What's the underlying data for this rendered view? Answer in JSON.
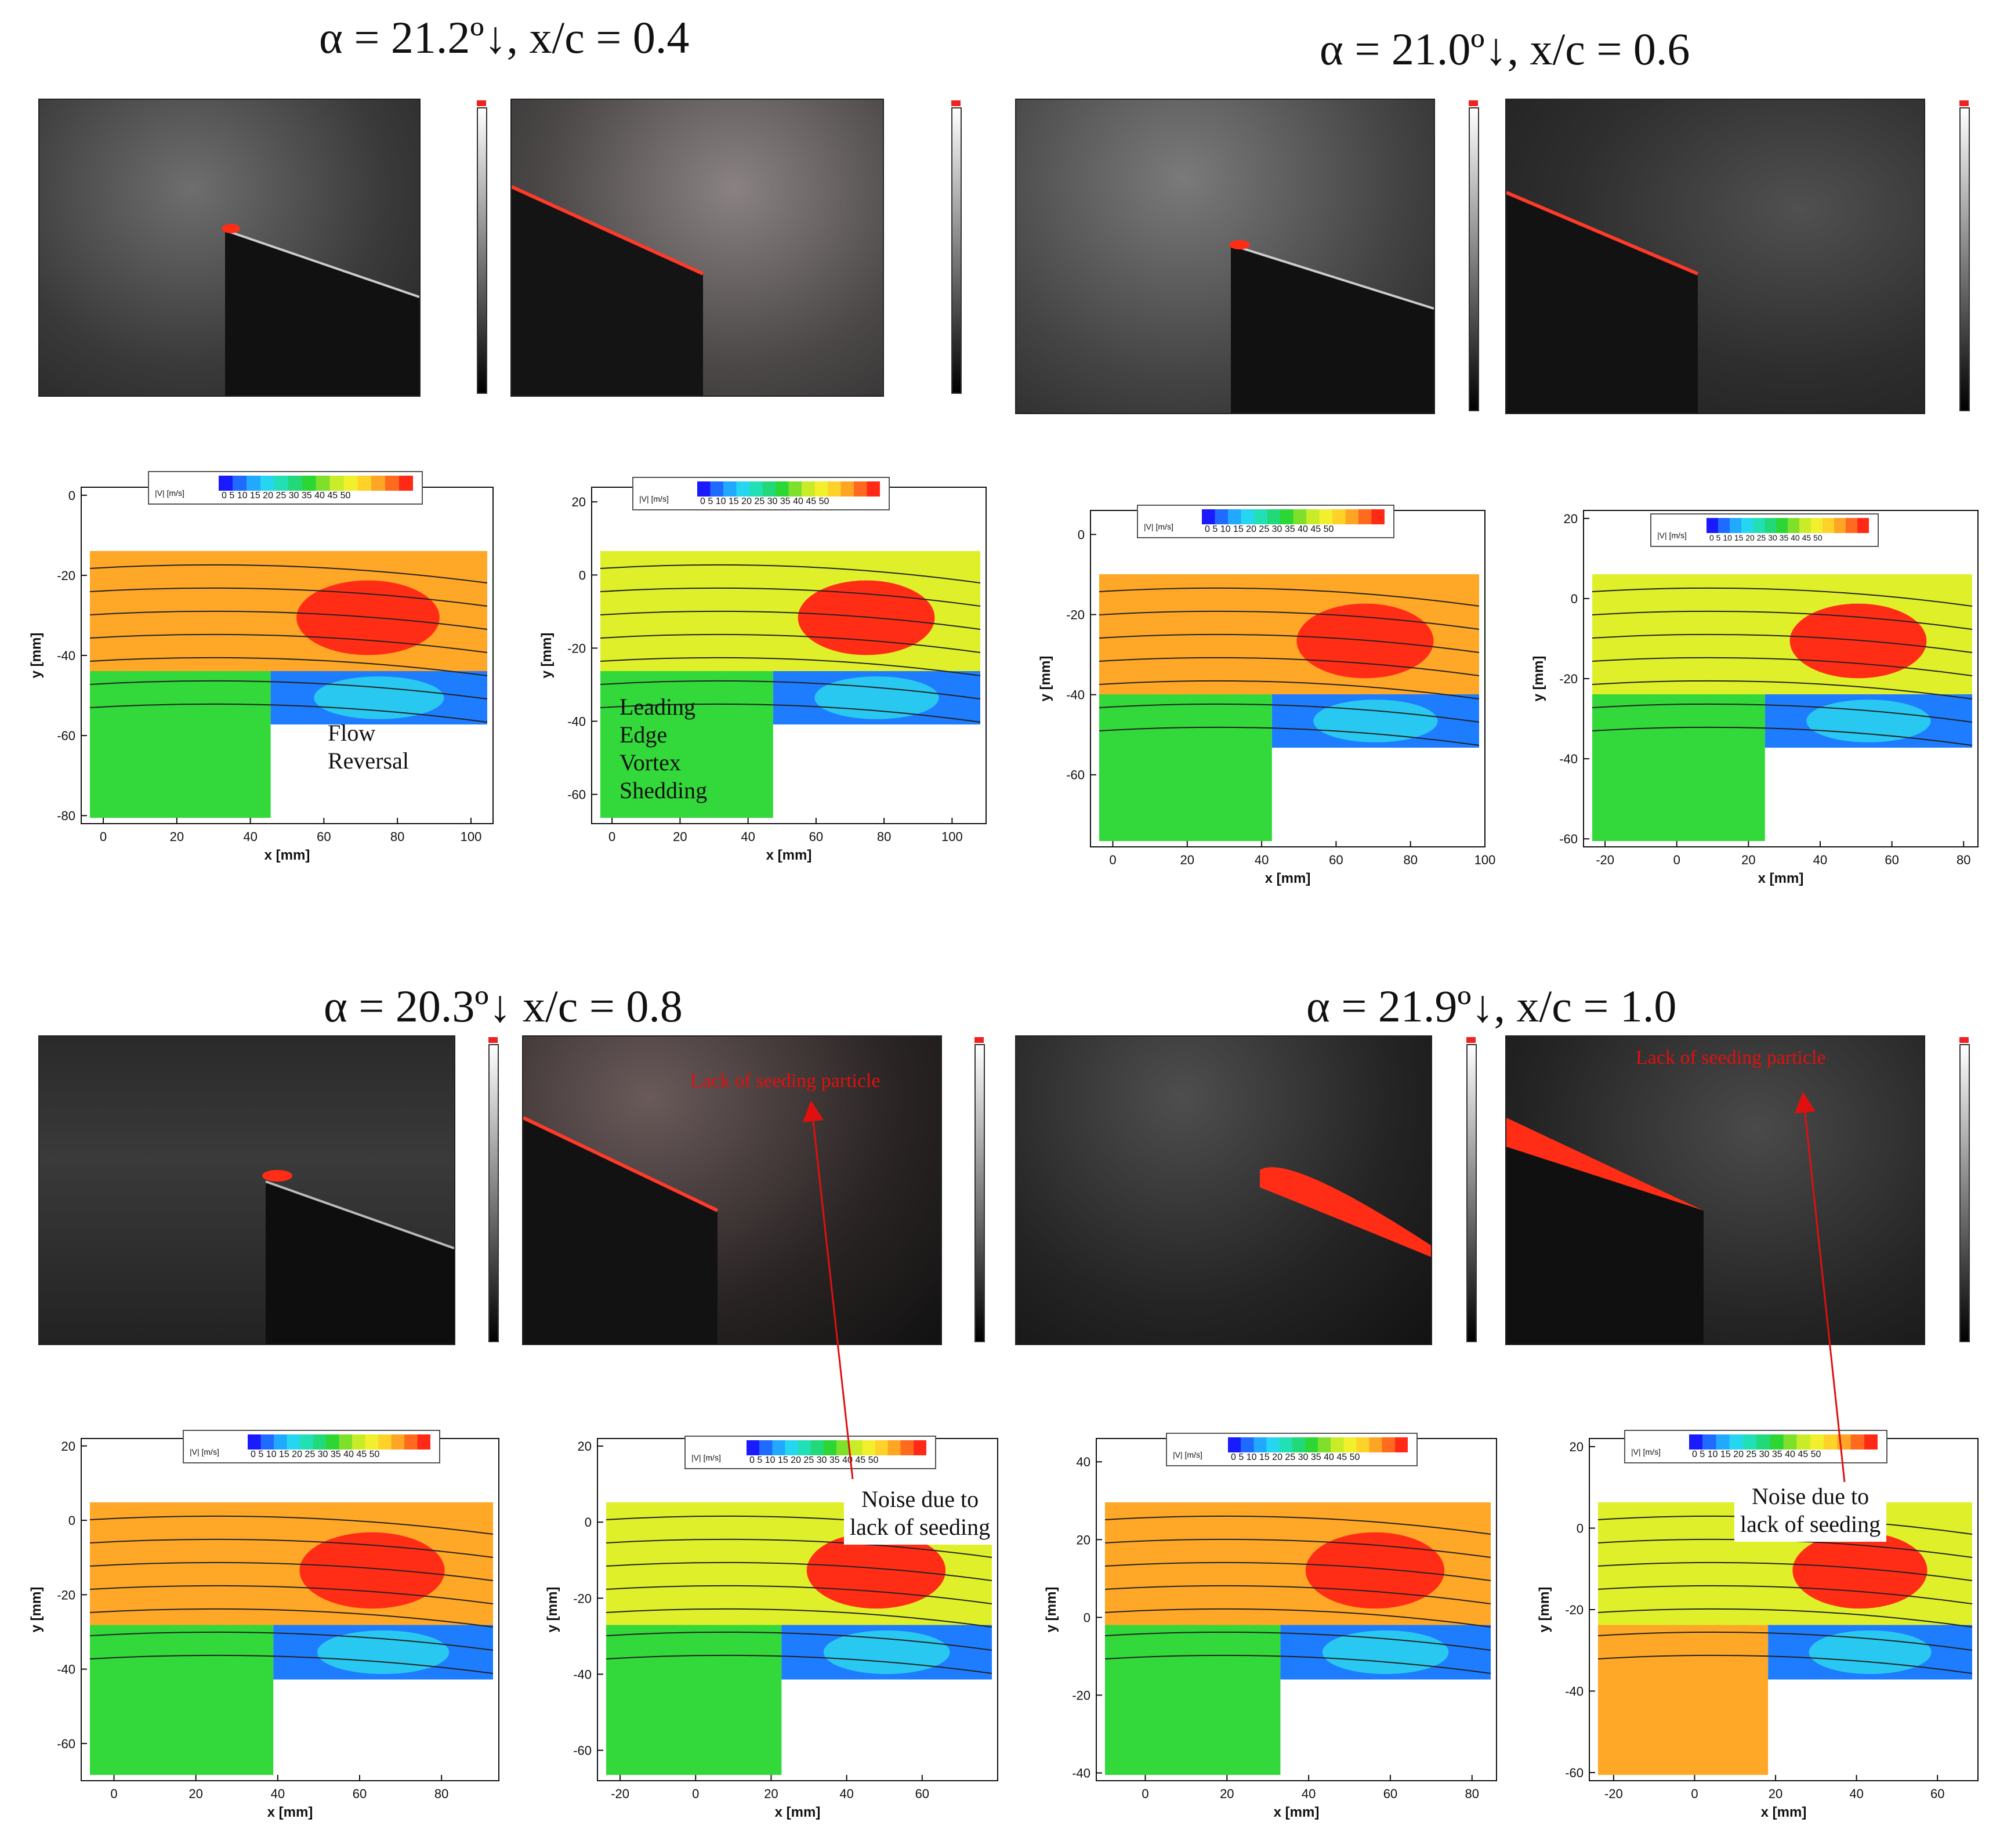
{
  "panels": [
    {
      "title": "α = 21.2º↓, x/c = 0.4",
      "plots": [
        {
          "xlim": [
            -6,
            106
          ],
          "ylim": [
            -82,
            2
          ],
          "xticks": [
            "0",
            "20",
            "40",
            "60",
            "80",
            "100"
          ],
          "xtick_vals": [
            0,
            20,
            40,
            60,
            80,
            100
          ],
          "yticks": [
            "0",
            "-20",
            "-40",
            "-60",
            "-80"
          ],
          "ytick_vals": [
            0,
            -20,
            -40,
            -60,
            -80
          ],
          "xlabel": "x [mm]",
          "ylabel": "y [mm]"
        },
        {
          "xlim": [
            -6,
            110
          ],
          "ylim": [
            -68,
            24
          ],
          "xticks": [
            "0",
            "20",
            "40",
            "60",
            "80",
            "100"
          ],
          "xtick_vals": [
            0,
            20,
            40,
            60,
            80,
            100
          ],
          "yticks": [
            "20",
            "0",
            "-20",
            "-40",
            "-60"
          ],
          "ytick_vals": [
            20,
            0,
            -20,
            -40,
            -60
          ],
          "xlabel": "x [mm]",
          "ylabel": "y [mm]"
        }
      ]
    },
    {
      "title": "α = 21.0º↓, x/c = 0.6",
      "plots": [
        {
          "xlim": [
            -6,
            100
          ],
          "ylim": [
            -78,
            6
          ],
          "xticks": [
            "0",
            "20",
            "40",
            "60",
            "80",
            "100"
          ],
          "xtick_vals": [
            0,
            20,
            40,
            60,
            80,
            100
          ],
          "yticks": [
            "0",
            "-20",
            "-40",
            "-60"
          ],
          "ytick_vals": [
            0,
            -20,
            -40,
            -60
          ],
          "xlabel": "x [mm]",
          "ylabel": "y [mm]"
        },
        {
          "xlim": [
            -26,
            84
          ],
          "ylim": [
            -62,
            22
          ],
          "xticks": [
            "-20",
            "0",
            "20",
            "40",
            "60",
            "80"
          ],
          "xtick_vals": [
            -20,
            0,
            20,
            40,
            60,
            80
          ],
          "yticks": [
            "20",
            "0",
            "-20",
            "-40",
            "-60"
          ],
          "ytick_vals": [
            20,
            0,
            -20,
            -40,
            -60
          ],
          "xlabel": "x [mm]",
          "ylabel": "y [mm]"
        }
      ]
    },
    {
      "title": "α = 20.3º↓  x/c = 0.8",
      "plots": [
        {
          "xlim": [
            -8,
            94
          ],
          "ylim": [
            -70,
            22
          ],
          "xticks": [
            "0",
            "20",
            "40",
            "60",
            "80"
          ],
          "xtick_vals": [
            0,
            20,
            40,
            60,
            80
          ],
          "yticks": [
            "20",
            "0",
            "-20",
            "-40",
            "-60"
          ],
          "ytick_vals": [
            20,
            0,
            -20,
            -40,
            -60
          ],
          "xlabel": "x [mm]",
          "ylabel": "y [mm]"
        },
        {
          "xlim": [
            -26,
            80
          ],
          "ylim": [
            -68,
            22
          ],
          "xticks": [
            "-20",
            "0",
            "20",
            "40",
            "60"
          ],
          "xtick_vals": [
            -20,
            0,
            20,
            40,
            60
          ],
          "yticks": [
            "20",
            "0",
            "-20",
            "-40",
            "-60"
          ],
          "ytick_vals": [
            20,
            0,
            -20,
            -40,
            -60
          ],
          "xlabel": "x [mm]",
          "ylabel": "y [mm]"
        }
      ]
    },
    {
      "title": "α = 21.9º↓, x/c = 1.0",
      "plots": [
        {
          "xlim": [
            -12,
            86
          ],
          "ylim": [
            -42,
            46
          ],
          "xticks": [
            "0",
            "20",
            "40",
            "60",
            "80"
          ],
          "xtick_vals": [
            0,
            20,
            40,
            60,
            80
          ],
          "yticks": [
            "40",
            "20",
            "0",
            "-20",
            "-40"
          ],
          "ytick_vals": [
            40,
            20,
            0,
            -20,
            -40
          ],
          "xlabel": "x [mm]",
          "ylabel": "y [mm]"
        },
        {
          "xlim": [
            -26,
            70
          ],
          "ylim": [
            -62,
            22
          ],
          "xticks": [
            "-20",
            "0",
            "20",
            "40",
            "60"
          ],
          "xtick_vals": [
            -20,
            0,
            20,
            40,
            60
          ],
          "yticks": [
            "20",
            "0",
            "-20",
            "-40",
            "-60"
          ],
          "ytick_vals": [
            20,
            0,
            -20,
            -40,
            -60
          ],
          "xlabel": "x [mm]",
          "ylabel": "y [mm]"
        }
      ]
    }
  ],
  "legend": {
    "label": "|V| [m/s]",
    "ticks": "0  5 10 15 20 25 30 35 40 45 50",
    "colors": [
      "#1a1aff",
      "#1f6bff",
      "#21a9ff",
      "#26d6f0",
      "#22e0b5",
      "#22d97a",
      "#2cd635",
      "#7ee02a",
      "#c8ec28",
      "#f2ef2c",
      "#ffd22a",
      "#ffa524",
      "#ff6a1f",
      "#ff2a15"
    ]
  },
  "annotations": {
    "flow_reversal": "Flow\nReversal",
    "le_vortex": "Leading\nEdge\nVortex\nShedding",
    "lack_seeding": "Lack of seeding particle",
    "noise_seeding": "Noise due to\nlack of seeding"
  },
  "colors": {
    "field_green": "#33d83a",
    "field_yellow": "#dff02a",
    "field_orange": "#ffa726",
    "field_red": "#ff2d16",
    "field_blue": "#1e7cff",
    "field_cyan": "#29c8f0"
  }
}
